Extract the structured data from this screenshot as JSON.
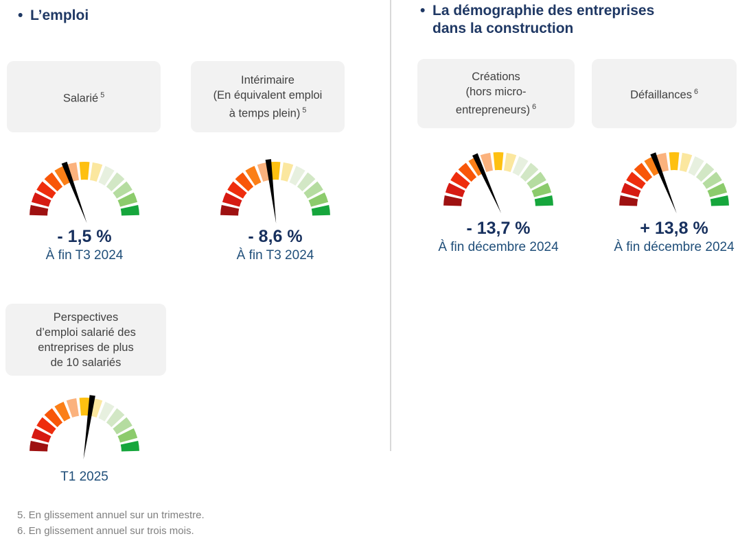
{
  "header_left": {
    "bullet": "•",
    "title": "L’emploi"
  },
  "header_right": {
    "bullet": "•",
    "title_line1": "La démographie des entreprises",
    "title_line2": "dans la construction"
  },
  "cards": [
    {
      "lines": [
        "Salarié"
      ],
      "sup": "5"
    },
    {
      "lines": [
        "Intérimaire",
        "(En équivalent emploi",
        "à temps plein)"
      ],
      "sup": "5"
    },
    {
      "lines": [
        "Créations",
        "(hors micro-",
        "entrepreneurs)"
      ],
      "sup": "6"
    },
    {
      "lines": [
        "Défaillances"
      ],
      "sup": "6"
    },
    {
      "lines": [
        "Perspectives",
        "d’emploi salarié des",
        "entreprises de plus",
        "de 10 salariés"
      ]
    }
  ],
  "chart_data": [
    {
      "type": "gauge",
      "label": "Salarié",
      "footnote_marker": "5",
      "value_percent": -1.5,
      "value_label": "- 1,5 %",
      "period": "À fin T3 2024",
      "needle_angle_from_vertical_deg": -20.5
    },
    {
      "type": "gauge",
      "label": "Intérimaire (En équivalent emploi à temps plein)",
      "footnote_marker": "5",
      "value_percent": -8.6,
      "value_label": "- 8,6 %",
      "period": "À fin T3 2024",
      "needle_angle_from_vertical_deg": -7
    },
    {
      "type": "gauge",
      "label": "Créations (hors micro-entrepreneurs)",
      "footnote_marker": "6",
      "value_percent": -13.7,
      "value_label": "- 13,7 %",
      "period": "À fin décembre 2024",
      "needle_angle_from_vertical_deg": -24
    },
    {
      "type": "gauge",
      "label": "Défaillances",
      "footnote_marker": "6",
      "value_percent": 13.8,
      "value_label": "+ 13,8 %",
      "period": "À fin décembre 2024",
      "needle_angle_from_vertical_deg": -21.5
    },
    {
      "type": "gauge",
      "label": "Perspectives d’emploi salarié des entreprises de plus de 10 salariés",
      "value_percent": null,
      "value_label": "",
      "period": "T1 2025",
      "needle_angle_from_vertical_deg": 8
    }
  ],
  "gauge_style": {
    "scale": "semicircular 13-segment scale from dark red (left) to vivid green (right)",
    "segment_colors": [
      "#9E1111",
      "#D61A12",
      "#EE2D0D",
      "#F85608",
      "#FB7F17",
      "#FBB27D",
      "#FEC011",
      "#FBE79F",
      "#E7F0DF",
      "#D2E7C5",
      "#B5DCA0",
      "#8CCB6C",
      "#16A63C"
    ],
    "gap_deg": 3.2,
    "needle_color": "#000000"
  },
  "footnotes": [
    "5. En glissement annuel sur un trimestre.",
    "6. En glissement annuel sur trois mois."
  ]
}
